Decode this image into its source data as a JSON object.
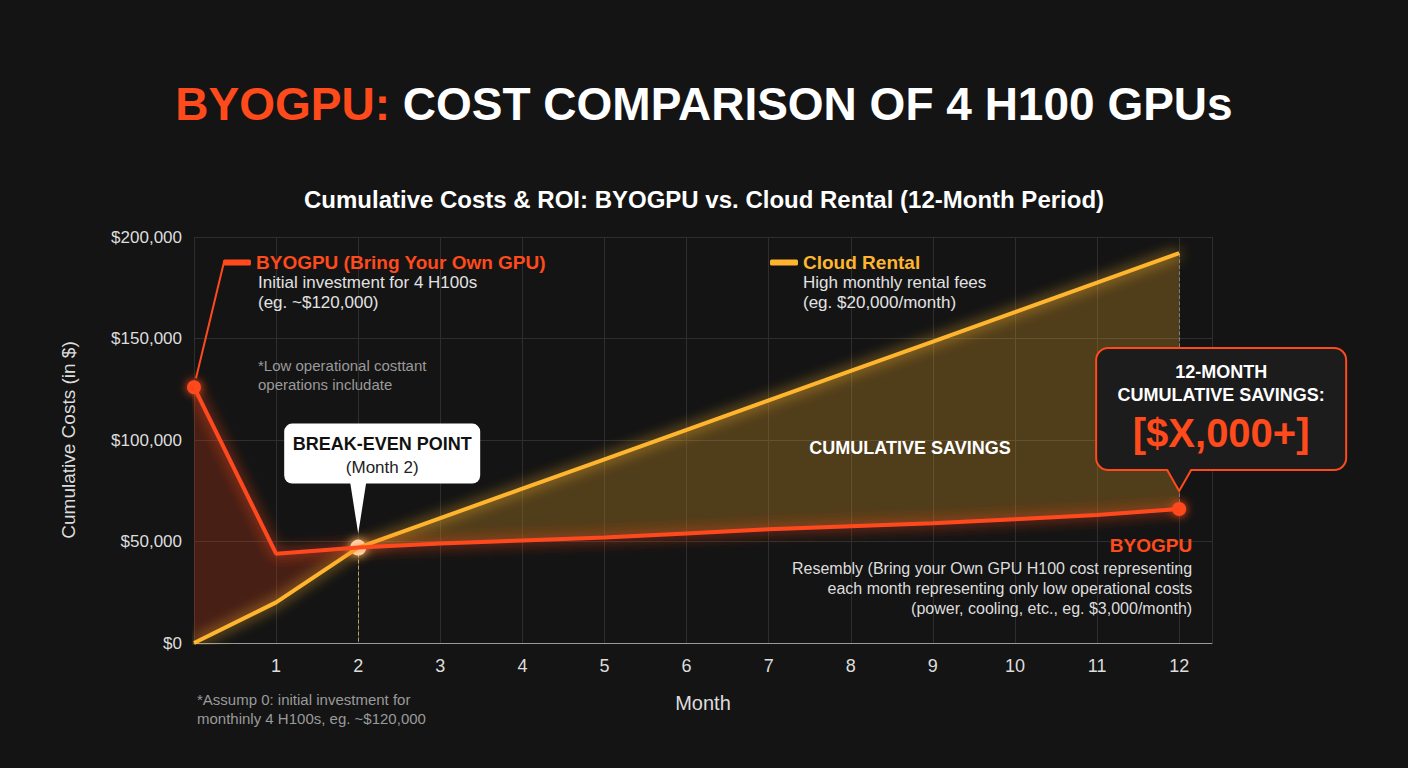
{
  "chart_data": {
    "type": "line",
    "title": "BYOGPU: COST COMPARISON OF 4 H100 GPUs",
    "subtitle": "Cumulative Costs & ROI: BYOGPU vs. Cloud Rental (12-Month Period)",
    "x_label": "Month",
    "y_label": "Cumulative Costs (in $)",
    "x": [
      0,
      1,
      2,
      3,
      4,
      5,
      6,
      7,
      8,
      9,
      10,
      11,
      12
    ],
    "series": [
      {
        "name": "BYOGPU (Bring Your Own GPU)",
        "color": "#ff4a1c",
        "marker": "circle",
        "line_style": "solid",
        "values": [
          126000,
          44000,
          47000,
          49000,
          50500,
          52000,
          54000,
          56000,
          57500,
          59000,
          61000,
          63000,
          66000
        ]
      },
      {
        "name": "Cloud Rental",
        "color": "#ffb62e",
        "line_style": "solid",
        "values": [
          0,
          20000,
          47000,
          61500,
          76000,
          90500,
          105000,
          119500,
          134000,
          148500,
          163000,
          177500,
          192000
        ]
      }
    ],
    "xlim": [
      0,
      12.4
    ],
    "xticks": [
      1,
      2,
      3,
      4,
      5,
      6,
      7,
      8,
      9,
      10,
      11,
      12
    ],
    "ylim": [
      0,
      200000
    ],
    "yticks": [
      {
        "value": 0,
        "label": "$0"
      },
      {
        "value": 50000,
        "label": "$50,000"
      },
      {
        "value": 100000,
        "label": "$100,000"
      },
      {
        "value": 150000,
        "label": "$150,000"
      },
      {
        "value": 200000,
        "label": "$200,000"
      }
    ],
    "grid": true,
    "legend": "top",
    "annotations": {
      "byogpu_legend_note": [
        "Initial investment for 4 H100s",
        "(eg. ~$120,000)"
      ],
      "cloud_legend_note": [
        "High monthly rental fees",
        "(eg. $20,000/month)"
      ],
      "ops_note": [
        "*Low operational costtant",
        "operations includate"
      ],
      "break_even": {
        "label": "BREAK-EVEN POINT",
        "sublabel": "(Month 2)",
        "x": 2,
        "y": 47000
      },
      "area_label": "CUMULATIVE SAVINGS",
      "savings_callout": {
        "heading": "12-MONTH CUMULATIVE SAVINGS:",
        "value": "[$X,000+]"
      },
      "end_label": {
        "title": "BYOGPU",
        "lines": [
          "Resembly (Bring your Own GPU H100 cost representing",
          "each month representing only low operational costs",
          "(power, cooling, etc., eg. $3,000/month)"
        ]
      },
      "footnote": [
        "*Assump 0: initial investment for",
        "monthinly 4 H100s, eg. ~$120,000"
      ]
    }
  }
}
